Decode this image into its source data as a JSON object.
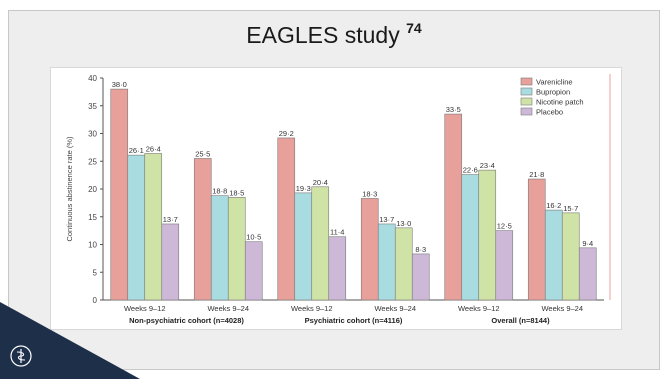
{
  "slide": {
    "title_text": "EAGLES study ",
    "title_ref": "74"
  },
  "colors": {
    "accent_dark": "#1e2f4a",
    "frame_bg": "#eeeeee"
  },
  "chart_data": {
    "type": "bar",
    "ylabel": "Continuous abstinence rate (%)",
    "ylim": [
      0,
      40
    ],
    "yticks": [
      0,
      5,
      10,
      15,
      20,
      25,
      30,
      35,
      40
    ],
    "groups": [
      {
        "label": "Weeks 9–12",
        "cohort": 0
      },
      {
        "label": "Weeks 9–24",
        "cohort": 0
      },
      {
        "label": "Weeks 9–12",
        "cohort": 1
      },
      {
        "label": "Weeks 9–24",
        "cohort": 1
      },
      {
        "label": "Weeks 9–12",
        "cohort": 2
      },
      {
        "label": "Weeks 9–24",
        "cohort": 2
      }
    ],
    "cohorts": [
      "Non-psychiatric cohort (n=4028)",
      "Psychiatric cohort (n=4116)",
      "Overall (n=8144)"
    ],
    "series": [
      {
        "name": "Varenicline",
        "color": "#e8a09a",
        "values": [
          38.0,
          25.5,
          29.2,
          18.3,
          33.5,
          21.8
        ],
        "labels": [
          "38·0",
          "25·5",
          "29·2",
          "18·3",
          "33·5",
          "21·8"
        ]
      },
      {
        "name": "Bupropion",
        "color": "#a8dce0",
        "values": [
          26.1,
          18.8,
          19.3,
          13.7,
          22.6,
          16.2
        ],
        "labels": [
          "26·1",
          "18·8",
          "19·3",
          "13·7",
          "22·6",
          "16·2"
        ]
      },
      {
        "name": "Nicotine patch",
        "color": "#cfe3a6",
        "values": [
          26.4,
          18.5,
          20.4,
          13.0,
          23.4,
          15.7
        ],
        "labels": [
          "26·4",
          "18·5",
          "20·4",
          "13·0",
          "23·4",
          "15·7"
        ]
      },
      {
        "name": "Placebo",
        "color": "#cdb8d8",
        "values": [
          13.7,
          10.5,
          11.4,
          8.3,
          12.5,
          9.4
        ],
        "labels": [
          "13·7",
          "10·5",
          "11·4",
          "8·3",
          "12·5",
          "9·4"
        ]
      }
    ],
    "legend_position": "top-right",
    "grid": false
  }
}
